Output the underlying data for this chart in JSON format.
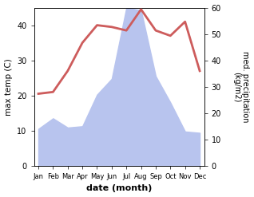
{
  "months": [
    "Jan",
    "Feb",
    "Mar",
    "Apr",
    "May",
    "Jun",
    "Jul",
    "Aug",
    "Sep",
    "Oct",
    "Nov",
    "Dec"
  ],
  "temp": [
    20.5,
    21.0,
    27.0,
    35.0,
    40.0,
    39.5,
    38.5,
    44.5,
    38.5,
    37.0,
    41.0,
    27.0
  ],
  "precip": [
    14.0,
    18.0,
    14.5,
    15.0,
    27.0,
    33.0,
    60.0,
    59.0,
    34.0,
    24.0,
    13.0,
    12.5
  ],
  "temp_color": "#cd5c5c",
  "precip_fill_color": "#b8c4ee",
  "ylabel_left": "max temp (C)",
  "ylabel_right": "med. precipitation\n(kg/m2)",
  "xlabel": "date (month)",
  "ylim_left": [
    0,
    45
  ],
  "ylim_right": [
    0,
    60
  ],
  "temp_lw": 2.0,
  "bg_color": "#ffffff",
  "left_ticks": [
    0,
    10,
    20,
    30,
    40
  ],
  "right_ticks": [
    0,
    10,
    20,
    30,
    40,
    50,
    60
  ]
}
